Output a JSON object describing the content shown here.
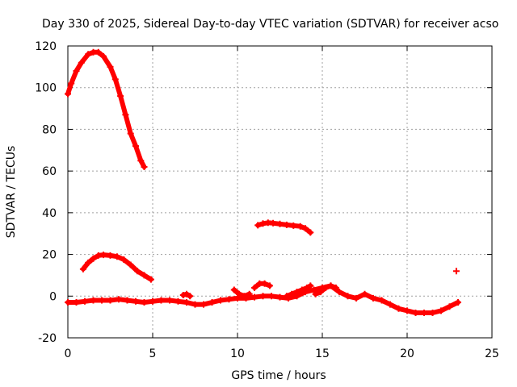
{
  "chart_data": {
    "type": "scatter",
    "title": "Day 330 of 2025, Sidereal Day-to-day VTEC variation (SDTVAR) for receiver acso",
    "xlabel": "GPS time / hours",
    "ylabel": "SDTVAR / TECUs",
    "xlim": [
      0,
      25
    ],
    "ylim": [
      -20,
      120
    ],
    "xticks": [
      0,
      5,
      10,
      15,
      20,
      25
    ],
    "yticks": [
      -20,
      0,
      20,
      40,
      60,
      80,
      100,
      120
    ],
    "grid": true,
    "marker": "+",
    "color": "#ff0000",
    "series": [
      {
        "name": "arc-high",
        "x": [
          0.0,
          0.2,
          0.5,
          0.8,
          1.2,
          1.5,
          1.8,
          2.1,
          2.5,
          2.8,
          3.1,
          3.4,
          3.7,
          4.0,
          4.3,
          4.5
        ],
        "y": [
          97,
          102,
          108,
          112,
          116,
          117,
          117,
          115,
          110,
          104,
          96,
          87,
          78,
          72,
          65,
          62
        ]
      },
      {
        "name": "arc-mid",
        "x": [
          0.9,
          1.2,
          1.5,
          1.8,
          2.1,
          2.5,
          2.9,
          3.3,
          3.7,
          4.1,
          4.5,
          4.9
        ],
        "y": [
          13,
          16,
          18,
          19.5,
          19.8,
          19.5,
          19,
          17.5,
          15,
          12,
          10,
          8
        ]
      },
      {
        "name": "arc-40",
        "x": [
          11.2,
          11.5,
          11.8,
          12.1,
          12.5,
          12.9,
          13.3,
          13.7,
          14.0,
          14.3
        ],
        "y": [
          34,
          34.8,
          35.2,
          35,
          34.6,
          34.2,
          33.8,
          33.5,
          32.5,
          30.5
        ]
      },
      {
        "name": "baseline",
        "x": [
          0.0,
          0.5,
          1.0,
          1.5,
          2.0,
          2.5,
          3.0,
          3.5,
          4.0,
          4.5,
          5.0,
          5.5,
          6.0,
          6.5,
          7.0,
          7.5,
          8.0,
          8.5,
          9.0,
          9.5,
          10.0,
          10.5,
          11.0,
          11.5,
          12.0,
          12.5,
          13.0,
          13.5,
          14.0,
          14.5,
          15.0,
          15.5,
          16.0,
          16.5,
          17.0,
          17.5,
          18.0,
          18.5,
          19.0,
          19.5,
          20.0,
          20.5,
          21.0,
          21.5,
          22.0,
          22.5,
          23.0
        ],
        "y": [
          -3,
          -3,
          -2.5,
          -2,
          -2,
          -2,
          -1.5,
          -2,
          -2.5,
          -3,
          -2.5,
          -2,
          -2,
          -2.5,
          -3,
          -4,
          -4,
          -3,
          -2,
          -1.5,
          -1,
          -1,
          -0.5,
          0,
          0,
          -0.5,
          -1,
          0,
          2,
          3,
          4,
          5,
          2,
          0,
          -1,
          1,
          -1,
          -2,
          -4,
          -6,
          -7,
          -8,
          -8,
          -8,
          -7,
          -5,
          -3
        ]
      },
      {
        "name": "bump-10",
        "x": [
          9.8,
          10.1,
          10.4,
          10.7
        ],
        "y": [
          3,
          1,
          0,
          1
        ]
      },
      {
        "name": "bump-11",
        "x": [
          11.0,
          11.3,
          11.6,
          11.9
        ],
        "y": [
          4,
          6,
          6,
          5
        ]
      },
      {
        "name": "bump-13",
        "x": [
          12.9,
          13.2,
          13.5,
          13.8,
          14.1,
          14.3
        ],
        "y": [
          0,
          1,
          2,
          3,
          4,
          5
        ]
      },
      {
        "name": "bump-15",
        "x": [
          14.6,
          14.9,
          15.2,
          15.5,
          15.8
        ],
        "y": [
          1,
          2,
          4,
          5,
          4
        ]
      },
      {
        "name": "bump-7",
        "x": [
          6.8,
          7.0,
          7.2
        ],
        "y": [
          0.5,
          1,
          0
        ]
      },
      {
        "name": "outlier",
        "x": [
          22.9
        ],
        "y": [
          12
        ]
      }
    ]
  }
}
